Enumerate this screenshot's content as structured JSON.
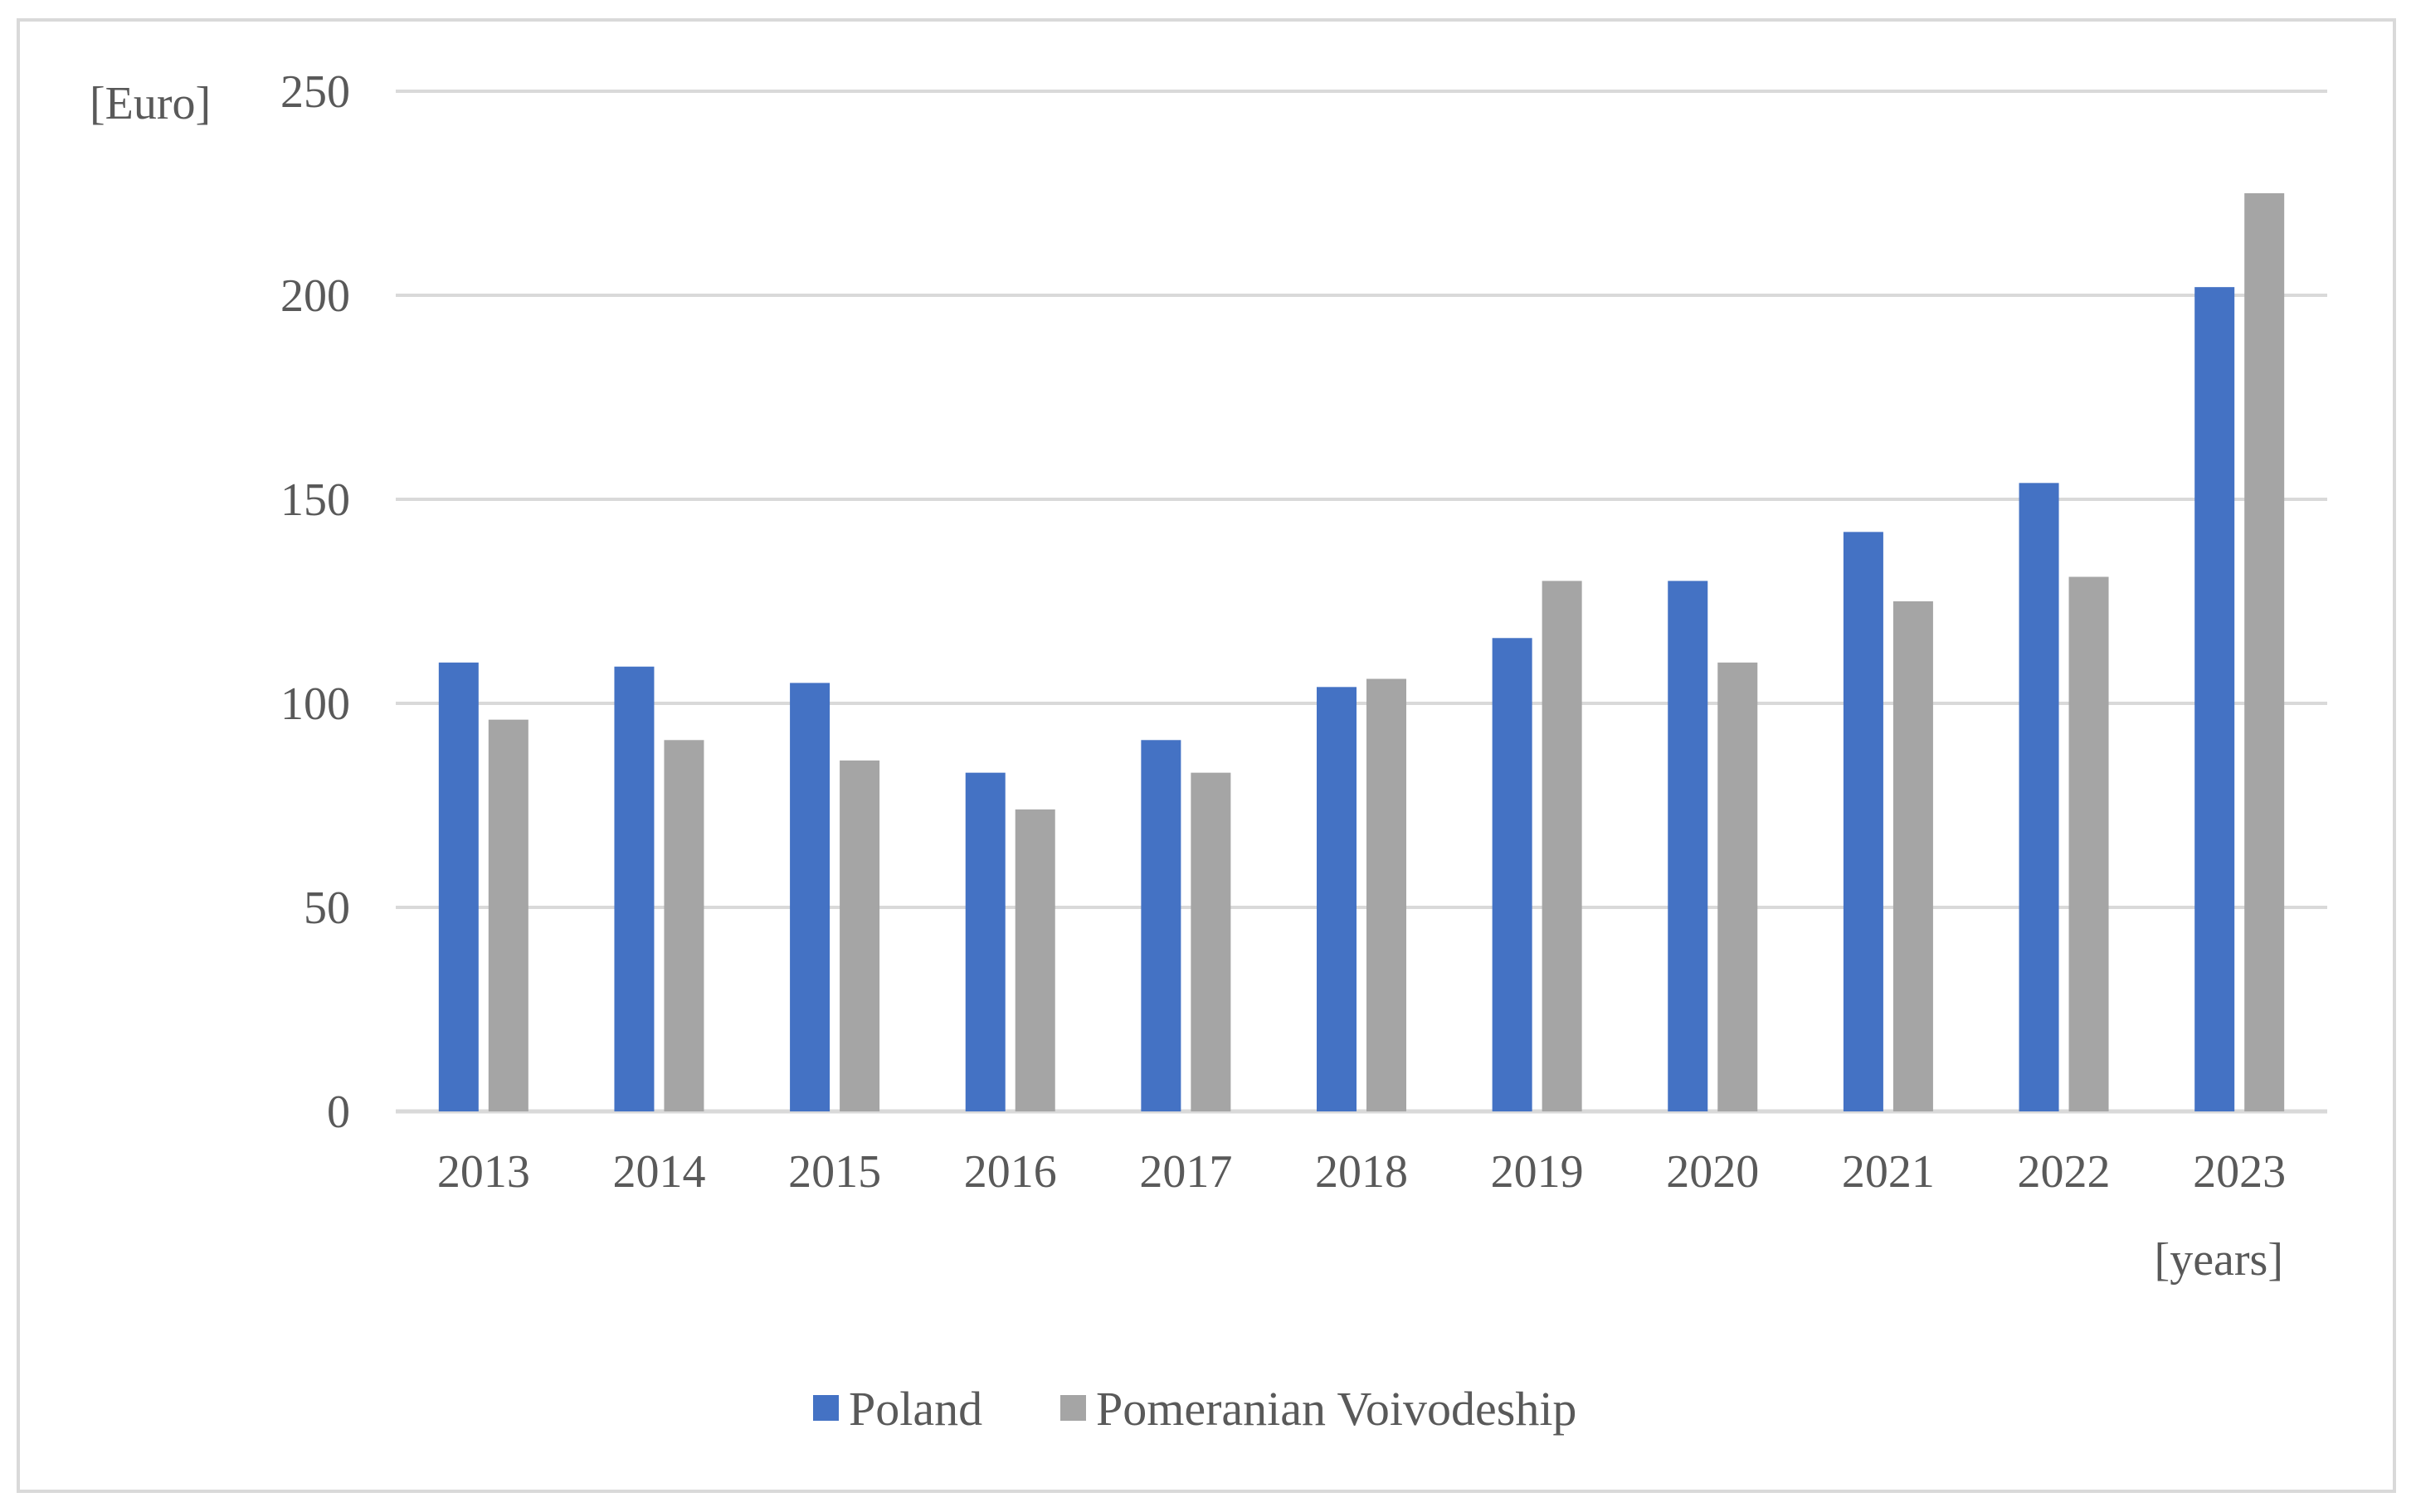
{
  "chart_data": {
    "type": "bar",
    "title": "",
    "ylabel": "[Euro]",
    "xlabel": "[years]",
    "ylim": [
      0,
      250
    ],
    "yticks": [
      0,
      50,
      100,
      150,
      200,
      250
    ],
    "grid": true,
    "legend_position": "bottom",
    "categories": [
      "2013",
      "2014",
      "2015",
      "2016",
      "2017",
      "2018",
      "2019",
      "2020",
      "2021",
      "2022",
      "2023"
    ],
    "series": [
      {
        "name": "Poland",
        "color": "#4472c4",
        "values": [
          110,
          109,
          105,
          83,
          91,
          104,
          116,
          130,
          142,
          154,
          202
        ]
      },
      {
        "name": "Pomeranian Voivodeship",
        "color": "#a5a5a5",
        "values": [
          96,
          91,
          86,
          74,
          83,
          106,
          130,
          110,
          125,
          131,
          225
        ]
      }
    ]
  }
}
